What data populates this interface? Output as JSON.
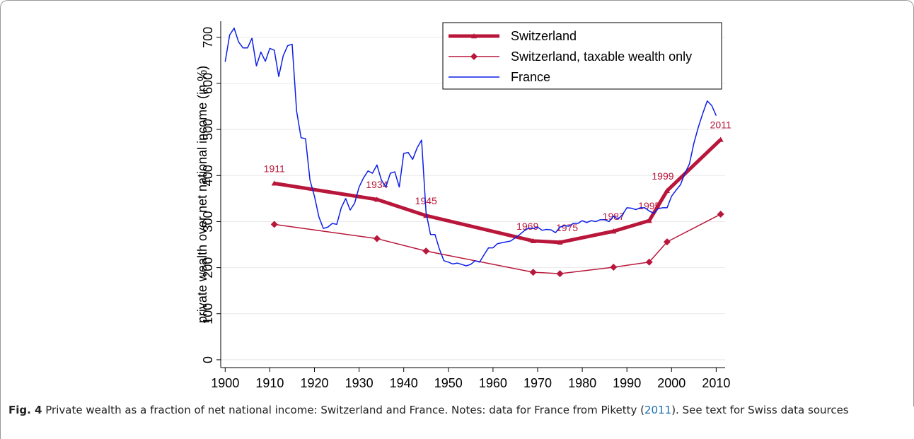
{
  "chart_data": {
    "type": "line",
    "y_label": "private wealth over net national income (in %)",
    "xlim": [
      1899,
      2012
    ],
    "ylim": [
      -17,
      735
    ],
    "xticks": [
      1900,
      1910,
      1920,
      1930,
      1940,
      1950,
      1960,
      1970,
      1980,
      1990,
      2000,
      2010
    ],
    "yticks": [
      0,
      100,
      200,
      300,
      400,
      500,
      600,
      700
    ],
    "grid": true,
    "legend": "top-right",
    "series": [
      {
        "name": "Switzerland",
        "color": "#b8163a",
        "marker": "triangle",
        "x": [
          1911,
          1934,
          1945,
          1969,
          1975,
          1987,
          1995,
          1999,
          2011
        ],
        "values": [
          383,
          348,
          313,
          258,
          255,
          279,
          302,
          367,
          478
        ]
      },
      {
        "name": "Switzerland, taxable wealth only",
        "color": "#b8163a",
        "marker": "diamond",
        "x": [
          1911,
          1934,
          1945,
          1969,
          1975,
          1987,
          1995,
          1999,
          2011
        ],
        "values": [
          294,
          263,
          236,
          190,
          187,
          201,
          212,
          256,
          316
        ]
      },
      {
        "name": "France",
        "color": "#0b1ee8",
        "marker": "none",
        "x": [
          1900,
          1901,
          1902,
          1903,
          1904,
          1905,
          1906,
          1907,
          1908,
          1909,
          1910,
          1911,
          1912,
          1913,
          1914,
          1915,
          1916,
          1917,
          1918,
          1919,
          1920,
          1921,
          1922,
          1923,
          1924,
          1925,
          1926,
          1927,
          1928,
          1929,
          1930,
          1931,
          1932,
          1933,
          1934,
          1935,
          1936,
          1937,
          1938,
          1939,
          1940,
          1941,
          1942,
          1943,
          1944,
          1945,
          1946,
          1947,
          1948,
          1949,
          1950,
          1951,
          1952,
          1953,
          1954,
          1955,
          1956,
          1957,
          1958,
          1959,
          1960,
          1961,
          1962,
          1963,
          1964,
          1965,
          1966,
          1967,
          1968,
          1969,
          1970,
          1971,
          1972,
          1973,
          1974,
          1975,
          1976,
          1977,
          1978,
          1979,
          1980,
          1981,
          1982,
          1983,
          1984,
          1985,
          1986,
          1987,
          1988,
          1989,
          1990,
          1991,
          1992,
          1993,
          1994,
          1995,
          1996,
          1997,
          1998,
          1999,
          2000,
          2001,
          2002,
          2003,
          2004,
          2005,
          2006,
          2007,
          2008,
          2009,
          2010
        ],
        "values": [
          647,
          705,
          720,
          690,
          677,
          677,
          698,
          638,
          668,
          648,
          676,
          672,
          615,
          660,
          682,
          685,
          540,
          482,
          480,
          390,
          355,
          310,
          285,
          288,
          296,
          294,
          330,
          350,
          325,
          340,
          375,
          395,
          410,
          405,
          423,
          390,
          375,
          405,
          408,
          375,
          448,
          450,
          435,
          460,
          477,
          320,
          272,
          272,
          240,
          215,
          212,
          208,
          210,
          207,
          204,
          207,
          215,
          212,
          228,
          243,
          243,
          252,
          254,
          256,
          258,
          265,
          272,
          280,
          286,
          285,
          288,
          281,
          283,
          282,
          276,
          288,
          291,
          290,
          296,
          296,
          302,
          298,
          302,
          300,
          304,
          304,
          300,
          312,
          305,
          315,
          330,
          329,
          326,
          330,
          330,
          323,
          318,
          328,
          330,
          330,
          355,
          368,
          380,
          405,
          425,
          470,
          505,
          535,
          562,
          552,
          530
        ]
      }
    ]
  },
  "caption": {
    "label": "Fig. 4",
    "text_before": "Private wealth as a fraction of net national income: Switzerland and France. Notes: data for France from Piketty (",
    "link": "2011",
    "text_after": "). See text for Swiss data sources"
  }
}
